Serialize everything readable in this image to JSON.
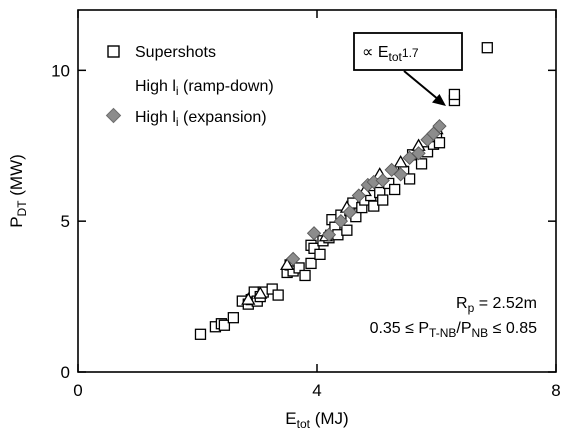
{
  "chart_data": {
    "type": "scatter",
    "title": "",
    "xlabel": {
      "main": "E",
      "sub": "tot",
      "rest": " (MJ)"
    },
    "ylabel": {
      "main": "P",
      "sub": "DT",
      "rest": " (MW)"
    },
    "xlim": [
      0,
      8
    ],
    "ylim": [
      0,
      12
    ],
    "x_ticks": [
      {
        "value": 0,
        "label": "0"
      },
      {
        "value": 4,
        "label": "4"
      },
      {
        "value": 8,
        "label": "8"
      }
    ],
    "y_ticks": [
      {
        "value": 0,
        "label": "0"
      },
      {
        "value": 5,
        "label": "5"
      },
      {
        "value": 10,
        "label": "10"
      }
    ],
    "grid": false,
    "legend": {
      "position": "top-left",
      "entries": [
        {
          "series": "supershots",
          "marker": "square",
          "text": "Supershots",
          "sub": ""
        },
        {
          "series": "rampdown",
          "marker": "triangle",
          "text": "High l",
          "sub": "i",
          "rest": " (ramp-down)"
        },
        {
          "series": "expansion",
          "marker": "diamond",
          "text": "High l",
          "sub": "i",
          "rest": " (expansion)"
        }
      ]
    },
    "annotations": {
      "scaling": {
        "prefix": "∝ E",
        "sub": "tot",
        "sup": "1.7"
      },
      "rp": {
        "main": "R",
        "sub": "p",
        "rest": " = 2.52m"
      },
      "ratio": {
        "pre": "0.35 ≤ P",
        "sub1": "T-NB",
        "mid": "/P",
        "sub2": "NB",
        "post": " ≤ 0.85"
      }
    },
    "series": [
      {
        "id": "supershots",
        "marker": "square",
        "color": "#000000",
        "points": [
          [
            2.05,
            1.25
          ],
          [
            2.3,
            1.5
          ],
          [
            2.4,
            1.6
          ],
          [
            2.45,
            1.55
          ],
          [
            2.6,
            1.8
          ],
          [
            2.75,
            2.35
          ],
          [
            2.85,
            2.25
          ],
          [
            2.9,
            2.4
          ],
          [
            2.95,
            2.65
          ],
          [
            3.0,
            2.35
          ],
          [
            3.05,
            2.5
          ],
          [
            3.1,
            2.65
          ],
          [
            3.25,
            2.75
          ],
          [
            3.35,
            2.55
          ],
          [
            3.5,
            3.3
          ],
          [
            3.55,
            3.55
          ],
          [
            3.6,
            3.35
          ],
          [
            3.7,
            3.45
          ],
          [
            3.8,
            3.2
          ],
          [
            3.9,
            3.6
          ],
          [
            3.9,
            4.2
          ],
          [
            3.95,
            4.1
          ],
          [
            4.05,
            3.9
          ],
          [
            4.1,
            4.35
          ],
          [
            4.2,
            4.45
          ],
          [
            4.25,
            5.05
          ],
          [
            4.3,
            4.8
          ],
          [
            4.35,
            4.55
          ],
          [
            4.4,
            5.2
          ],
          [
            4.5,
            4.7
          ],
          [
            4.55,
            5.35
          ],
          [
            4.6,
            5.6
          ],
          [
            4.65,
            5.15
          ],
          [
            4.75,
            5.45
          ],
          [
            4.8,
            5.7
          ],
          [
            4.9,
            5.85
          ],
          [
            4.95,
            5.5
          ],
          [
            5.05,
            5.95
          ],
          [
            5.1,
            5.7
          ],
          [
            5.2,
            6.25
          ],
          [
            5.3,
            6.05
          ],
          [
            5.45,
            6.65
          ],
          [
            5.55,
            6.4
          ],
          [
            5.6,
            7.2
          ],
          [
            5.75,
            6.9
          ],
          [
            5.85,
            7.3
          ],
          [
            5.95,
            7.55
          ],
          [
            6.0,
            7.8
          ],
          [
            6.05,
            7.6
          ],
          [
            6.3,
            9.0
          ],
          [
            6.3,
            9.2
          ],
          [
            6.85,
            10.75
          ]
        ]
      },
      {
        "id": "rampdown",
        "marker": "triangle",
        "color": "#000000",
        "points": [
          [
            2.85,
            2.4
          ],
          [
            3.05,
            2.6
          ],
          [
            3.5,
            3.55
          ],
          [
            4.15,
            4.5
          ],
          [
            4.5,
            5.45
          ],
          [
            4.8,
            6.0
          ],
          [
            5.05,
            6.55
          ],
          [
            5.4,
            6.95
          ],
          [
            5.7,
            7.5
          ],
          [
            6.0,
            8.05
          ]
        ]
      },
      {
        "id": "expansion",
        "marker": "diamond",
        "color": "#8c8c8c",
        "points": [
          [
            3.6,
            3.75
          ],
          [
            3.95,
            4.6
          ],
          [
            4.2,
            4.55
          ],
          [
            4.4,
            5.0
          ],
          [
            4.55,
            5.3
          ],
          [
            4.7,
            5.85
          ],
          [
            4.85,
            6.2
          ],
          [
            4.95,
            6.3
          ],
          [
            5.1,
            6.35
          ],
          [
            5.25,
            6.7
          ],
          [
            5.4,
            6.55
          ],
          [
            5.55,
            7.1
          ],
          [
            5.7,
            7.25
          ],
          [
            5.85,
            7.7
          ],
          [
            5.95,
            7.9
          ],
          [
            6.05,
            8.15
          ]
        ]
      }
    ]
  }
}
